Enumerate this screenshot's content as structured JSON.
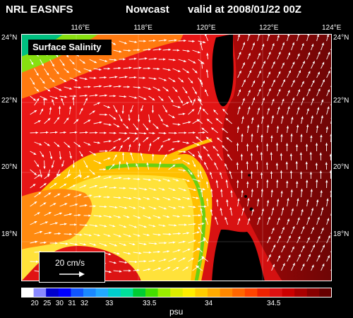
{
  "header": {
    "model": "NRL EASNFS",
    "kind": "Nowcast",
    "valid": "valid at 2008/01/22 00Z"
  },
  "map": {
    "caption": "Surface Salinity",
    "lon_ticks": [
      {
        "lon": 116,
        "label": "116°E"
      },
      {
        "lon": 118,
        "label": "118°E"
      },
      {
        "lon": 120,
        "label": "120°E"
      },
      {
        "lon": 122,
        "label": "122°E"
      },
      {
        "lon": 124,
        "label": "124°E"
      }
    ],
    "lat_ticks": [
      {
        "lat": 24,
        "label": "24°N"
      },
      {
        "lat": 22,
        "label": "22°N"
      },
      {
        "lat": 20,
        "label": "20°N"
      },
      {
        "lat": 18,
        "label": "18°N"
      }
    ],
    "lon_range": [
      114.1,
      124
    ],
    "lat_range": [
      16.6,
      24
    ],
    "colors": {
      "land": "#000000",
      "high_salinity": "#7a0a0a",
      "mid_salinity": "#e01a1a",
      "low_salinity": "#ffd21e",
      "arrows": "#ffffff"
    }
  },
  "scale": {
    "label": "20 cm/s",
    "speed_cm_s": 20
  },
  "colorbar": {
    "unit": "psu",
    "colors": [
      "#ffffff",
      "#8888ff",
      "#0000cc",
      "#0000ff",
      "#1055ff",
      "#1a88ff",
      "#22aaff",
      "#00cccc",
      "#00e09a",
      "#00cc33",
      "#44dd00",
      "#99ee00",
      "#ddee00",
      "#ffee00",
      "#ffcc00",
      "#ffaa00",
      "#ff8800",
      "#ff6600",
      "#ff4400",
      "#ee2200",
      "#dd1111",
      "#cc0000",
      "#aa0000",
      "#880000",
      "#660000"
    ],
    "labels": [
      {
        "value": "20",
        "index": 1
      },
      {
        "value": "25",
        "index": 2
      },
      {
        "value": "30",
        "index": 3
      },
      {
        "value": "31",
        "index": 4
      },
      {
        "value": "32",
        "index": 5
      },
      {
        "value": "33",
        "index": 7
      },
      {
        "value": "33.5",
        "index": 10
      },
      {
        "value": "34",
        "index": 15
      },
      {
        "value": "34.5",
        "index": 20
      }
    ]
  }
}
